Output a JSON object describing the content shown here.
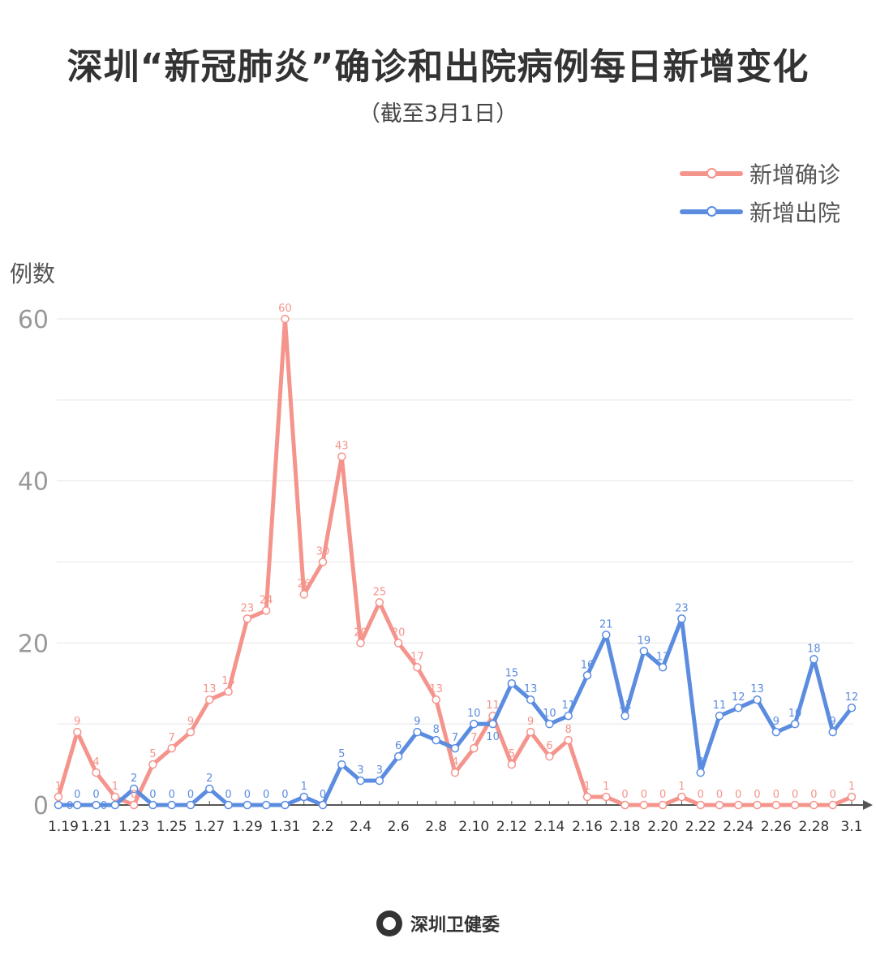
{
  "title": "深圳“新冠肺炎”确诊和出院病例每日新增变化",
  "subtitle": "（截至3月1日）",
  "footer": "深圳卫健委",
  "chart_data": {
    "type": "line",
    "ylabel": "例数",
    "ylim": [
      0,
      60
    ],
    "yticks": [
      0,
      20,
      40,
      60
    ],
    "grid": true,
    "legend_position": "top-right",
    "x": [
      "1.19",
      "1.20",
      "1.21",
      "1.22",
      "1.23",
      "1.24",
      "1.25",
      "1.26",
      "1.27",
      "1.28",
      "1.29",
      "1.30",
      "1.31",
      "2.1",
      "2.2",
      "2.3",
      "2.4",
      "2.5",
      "2.6",
      "2.7",
      "2.8",
      "2.9",
      "2.10",
      "2.11",
      "2.12",
      "2.13",
      "2.14",
      "2.15",
      "2.16",
      "2.17",
      "2.18",
      "2.19",
      "2.20",
      "2.21",
      "2.22",
      "2.23",
      "2.24",
      "2.25",
      "2.26",
      "2.27",
      "2.28",
      "2.29",
      "3.1"
    ],
    "xtick_labels": [
      "1.19",
      "1.21",
      "1.23",
      "1.25",
      "1.27",
      "1.29",
      "1.31",
      "2.2",
      "2.4",
      "2.6",
      "2.8",
      "2.10",
      "2.12",
      "2.14",
      "2.16",
      "2.18",
      "2.20",
      "2.22",
      "2.24",
      "2.26",
      "2.28",
      "3.1"
    ],
    "series": [
      {
        "name": "新增确诊",
        "color": "#f4948c",
        "values": [
          1,
          9,
          4,
          1,
          0,
          5,
          7,
          9,
          13,
          14,
          23,
          24,
          60,
          26,
          30,
          43,
          20,
          25,
          20,
          17,
          13,
          4,
          7,
          11,
          5,
          9,
          6,
          8,
          1,
          1,
          0,
          0,
          0,
          1,
          0,
          0,
          0,
          0,
          0,
          0,
          0,
          0,
          1
        ]
      },
      {
        "name": "新增出院",
        "color": "#5b8ce0",
        "values": [
          0,
          0,
          0,
          0,
          2,
          0,
          0,
          0,
          2,
          0,
          0,
          0,
          0,
          1,
          0,
          5,
          3,
          3,
          6,
          9,
          8,
          7,
          10,
          10,
          15,
          13,
          10,
          11,
          16,
          21,
          11,
          19,
          17,
          23,
          4,
          11,
          12,
          13,
          9,
          10,
          18,
          9,
          12
        ]
      }
    ]
  }
}
